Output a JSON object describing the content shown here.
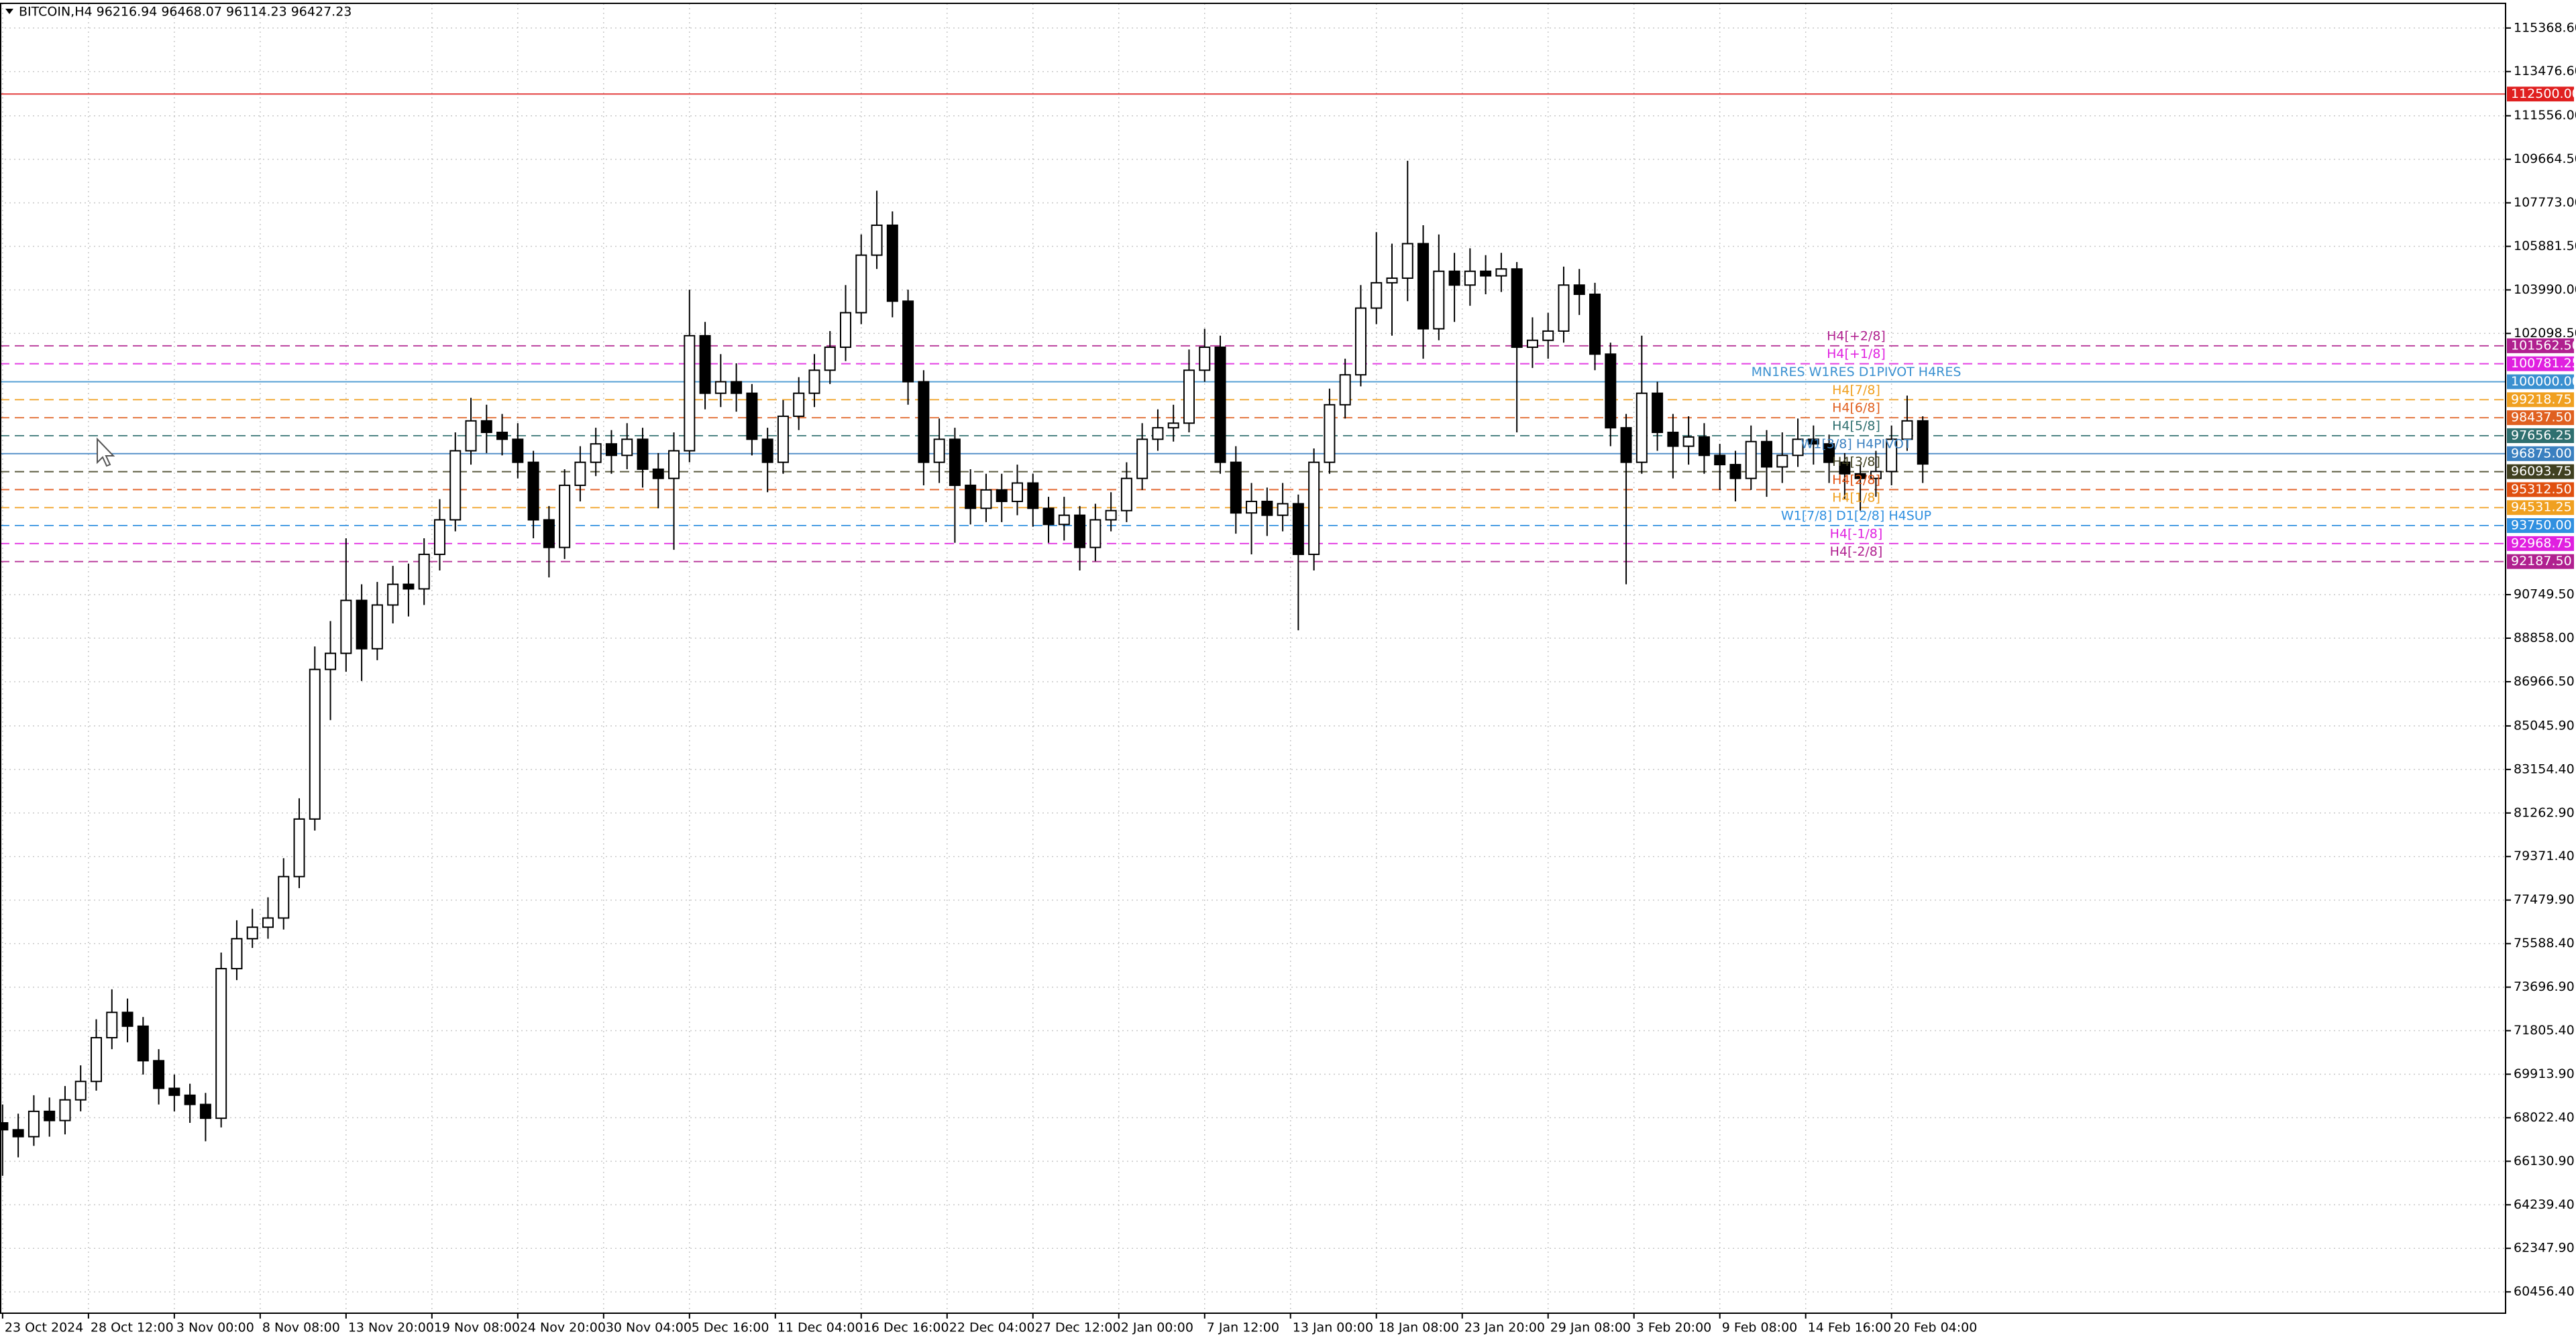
{
  "chart_data": {
    "type": "candlestick",
    "title": "BITCOIN,H4  96216.94 96468.07 96114.23 96427.23",
    "grid": true,
    "candle_colors": {
      "up": "#ffffff",
      "down": "#000000",
      "outline": "#000000"
    },
    "x": [
      0,
      6,
      12,
      18,
      24,
      30,
      36,
      42,
      48,
      54,
      60,
      66,
      72,
      78,
      84,
      90,
      96,
      102,
      108,
      114,
      120,
      126,
      132,
      138,
      144,
      150,
      156,
      162,
      168,
      174,
      180,
      186,
      192,
      198,
      204,
      210,
      216,
      222,
      228,
      234,
      240,
      246,
      252,
      258,
      264,
      270,
      276,
      282,
      288,
      294,
      300,
      306,
      312,
      318,
      324,
      330,
      336,
      342,
      348,
      354,
      360,
      366,
      372,
      378,
      384,
      390,
      396,
      402,
      408,
      414,
      420,
      426,
      432,
      438,
      444,
      450,
      456,
      462,
      468,
      474,
      480,
      486,
      492,
      498,
      504,
      510,
      516,
      522,
      528,
      534,
      540,
      546,
      552,
      558,
      564,
      570,
      576,
      582,
      588,
      594,
      600,
      606,
      612,
      618,
      624,
      630,
      636,
      642,
      648,
      654,
      660,
      666,
      672,
      678,
      684,
      690,
      696,
      702,
      708,
      714,
      720,
      726,
      732,
      738
    ],
    "open": [
      67800,
      67500,
      67200,
      68300,
      67900,
      68800,
      69600,
      71500,
      72600,
      72000,
      70500,
      69300,
      69000,
      68600,
      68000,
      74500,
      75800,
      76300,
      76700,
      78500,
      81000,
      87500,
      88200,
      90500,
      88400,
      90300,
      91200,
      91000,
      92500,
      94000,
      97000,
      98300,
      97800,
      97500,
      96500,
      94000,
      92800,
      95500,
      96500,
      97300,
      96800,
      97500,
      96200,
      95800,
      97000,
      102000,
      99500,
      100000,
      99500,
      97500,
      96500,
      98500,
      99500,
      100500,
      101500,
      103000,
      105500,
      106800,
      103500,
      100000,
      96500,
      97500,
      95500,
      94500,
      95300,
      94800,
      95600,
      94500,
      93800,
      94200,
      92800,
      94000,
      94400,
      95800,
      97500,
      98000,
      98200,
      100500,
      101500,
      96500,
      94300,
      94800,
      94200,
      94700,
      92500,
      96500,
      99000,
      100300,
      103200,
      104300,
      104500,
      106000,
      102300,
      104800,
      104200,
      104800,
      104600,
      104900,
      101500,
      101800,
      102200,
      104200,
      103800,
      101200,
      98000,
      96500,
      99500,
      97800,
      97200,
      97600,
      96800,
      96400,
      95800,
      97400,
      96300,
      96800,
      97500,
      97300,
      96500,
      96000,
      95800,
      96100,
      97500,
      98300
    ],
    "high": [
      68600,
      68200,
      69000,
      68900,
      69400,
      70300,
      72300,
      73600,
      73200,
      72400,
      71000,
      69900,
      69500,
      69100,
      75200,
      76600,
      77100,
      77600,
      79300,
      81900,
      88500,
      89600,
      93200,
      91200,
      91300,
      92000,
      92100,
      93200,
      94900,
      97800,
      99300,
      99000,
      98600,
      98200,
      97000,
      94600,
      96200,
      97200,
      98000,
      97900,
      98200,
      98000,
      96900,
      97800,
      104000,
      102600,
      101200,
      100800,
      99900,
      98000,
      99200,
      100200,
      101200,
      102200,
      104200,
      106400,
      108300,
      107400,
      104000,
      100500,
      98400,
      98000,
      96200,
      96000,
      96000,
      96400,
      96000,
      95000,
      95000,
      94600,
      94700,
      95200,
      96500,
      98200,
      98800,
      99000,
      101400,
      102300,
      102000,
      97200,
      95600,
      95400,
      95600,
      95100,
      97100,
      99700,
      101000,
      104200,
      106500,
      106000,
      109600,
      106800,
      106400,
      105600,
      105800,
      105500,
      105600,
      105200,
      102800,
      103000,
      105000,
      104900,
      104300,
      101700,
      98600,
      102000,
      100000,
      98600,
      98500,
      98200,
      97300,
      97000,
      98100,
      97900,
      97800,
      98400,
      98100,
      97700,
      96900,
      96400,
      97000,
      98100,
      99400,
      98500
    ],
    "low": [
      65500,
      66300,
      66800,
      67200,
      67300,
      68300,
      69200,
      71000,
      71300,
      69900,
      68600,
      68300,
      67800,
      67000,
      67600,
      74000,
      75400,
      75800,
      76200,
      78000,
      80500,
      85300,
      87400,
      87000,
      87900,
      89500,
      89800,
      90300,
      91800,
      93500,
      96400,
      96900,
      96800,
      95800,
      93200,
      91500,
      92300,
      94800,
      95900,
      96000,
      96200,
      95400,
      94500,
      92700,
      96500,
      98800,
      98900,
      98700,
      96800,
      95200,
      96000,
      97900,
      98900,
      99900,
      100900,
      102500,
      104900,
      102800,
      99000,
      95500,
      95600,
      93000,
      93800,
      93900,
      93900,
      94200,
      93700,
      93000,
      93100,
      91800,
      92200,
      93500,
      93900,
      95300,
      97000,
      97400,
      97800,
      100000,
      96000,
      93400,
      92500,
      93300,
      93500,
      89200,
      91800,
      96000,
      98400,
      99800,
      102500,
      102000,
      103500,
      101000,
      101800,
      102600,
      103300,
      103800,
      103900,
      97800,
      100600,
      101000,
      101700,
      102900,
      100500,
      97200,
      91200,
      96000,
      97000,
      95800,
      96400,
      96000,
      95300,
      94800,
      95300,
      95000,
      95600,
      96300,
      96400,
      95600,
      94900,
      94400,
      95000,
      95500,
      97000,
      95600
    ],
    "close": [
      67500,
      67200,
      68300,
      67900,
      68800,
      69600,
      71500,
      72600,
      72000,
      70500,
      69300,
      69000,
      68600,
      68000,
      74500,
      75800,
      76300,
      76700,
      78500,
      81000,
      87500,
      88200,
      90500,
      88400,
      90300,
      91200,
      91000,
      92500,
      94000,
      97000,
      98300,
      97800,
      97500,
      96500,
      94000,
      92800,
      95500,
      96500,
      97300,
      96800,
      97500,
      96200,
      95800,
      97000,
      102000,
      99500,
      100000,
      99500,
      97500,
      96500,
      98500,
      99500,
      100500,
      101500,
      103000,
      105500,
      106800,
      103500,
      100000,
      96500,
      97500,
      95500,
      94500,
      95300,
      94800,
      95600,
      94500,
      93800,
      94200,
      92800,
      94000,
      94400,
      95800,
      97500,
      98000,
      98200,
      100500,
      101500,
      96500,
      94300,
      94800,
      94200,
      94700,
      92500,
      96500,
      99000,
      100300,
      103200,
      104300,
      104500,
      106000,
      102300,
      104800,
      104200,
      104800,
      104600,
      104900,
      101500,
      101800,
      102200,
      104200,
      103800,
      101200,
      98000,
      96500,
      99500,
      97800,
      97200,
      97600,
      96800,
      96400,
      95800,
      97400,
      96300,
      96800,
      97500,
      97300,
      96500,
      96000,
      95800,
      96100,
      97500,
      98300,
      96427.23
    ],
    "xlim": [
      -1,
      962
    ],
    "xticks": [
      {
        "value": 0,
        "label": "23 Oct 2024"
      },
      {
        "value": 33,
        "label": "28 Oct 12:00"
      },
      {
        "value": 66,
        "label": "3 Nov 00:00"
      },
      {
        "value": 99,
        "label": "8 Nov 08:00"
      },
      {
        "value": 132,
        "label": "13 Nov 20:00"
      },
      {
        "value": 165,
        "label": "19 Nov 08:00"
      },
      {
        "value": 198,
        "label": "24 Nov 20:00"
      },
      {
        "value": 231,
        "label": "30 Nov 04:00"
      },
      {
        "value": 264,
        "label": "5 Dec 16:00"
      },
      {
        "value": 297,
        "label": "11 Dec 04:00"
      },
      {
        "value": 330,
        "label": "16 Dec 16:00"
      },
      {
        "value": 363,
        "label": "22 Dec 04:00"
      },
      {
        "value": 396,
        "label": "27 Dec 12:00"
      },
      {
        "value": 429,
        "label": "2 Jan 00:00"
      },
      {
        "value": 462,
        "label": "7 Jan 12:00"
      },
      {
        "value": 495,
        "label": "13 Jan 00:00"
      },
      {
        "value": 528,
        "label": "18 Jan 08:00"
      },
      {
        "value": 561,
        "label": "23 Jan 20:00"
      },
      {
        "value": 594,
        "label": "29 Jan 08:00"
      },
      {
        "value": 627,
        "label": "3 Feb 20:00"
      },
      {
        "value": 660,
        "label": "9 Feb 08:00"
      },
      {
        "value": 693,
        "label": "14 Feb 16:00"
      },
      {
        "value": 726,
        "label": "20 Feb 04:00"
      }
    ],
    "ylim": [
      59530,
      116440
    ],
    "yticks": [
      {
        "value": 115368.6,
        "label": "115368.60"
      },
      {
        "value": 113476.6,
        "label": "113476.60"
      },
      {
        "value": 111556,
        "label": "111556.00"
      },
      {
        "value": 109664.5,
        "label": "109664.50"
      },
      {
        "value": 107773,
        "label": "107773.00"
      },
      {
        "value": 105881.5,
        "label": "105881.50"
      },
      {
        "value": 103990,
        "label": "103990.00"
      },
      {
        "value": 102098.5,
        "label": "102098.50"
      },
      {
        "value": 90749.5,
        "label": "90749.50"
      },
      {
        "value": 88858,
        "label": "88858.00"
      },
      {
        "value": 86966.5,
        "label": "86966.50"
      },
      {
        "value": 85045.9,
        "label": "85045.90"
      },
      {
        "value": 83154.4,
        "label": "83154.40"
      },
      {
        "value": 81262.9,
        "label": "81262.90"
      },
      {
        "value": 79371.4,
        "label": "79371.40"
      },
      {
        "value": 77479.9,
        "label": "77479.90"
      },
      {
        "value": 75588.4,
        "label": "75588.40"
      },
      {
        "value": 73696.9,
        "label": "73696.90"
      },
      {
        "value": 71805.4,
        "label": "71805.40"
      },
      {
        "value": 69913.9,
        "label": "69913.90"
      },
      {
        "value": 68022.4,
        "label": "68022.40"
      },
      {
        "value": 66130.9,
        "label": "66130.90"
      },
      {
        "value": 64239.4,
        "label": "64239.40"
      },
      {
        "value": 62347.9,
        "label": "62347.90"
      },
      {
        "value": 60456.4,
        "label": "60456.40"
      }
    ],
    "levels": [
      {
        "value": 112500,
        "label": "112500.00",
        "color": "#e02020",
        "style": "solid"
      },
      {
        "value": 101562.5,
        "label": "101562.50",
        "name": "H4[+2/8]",
        "color": "#b0208f",
        "style": "dashed"
      },
      {
        "value": 100781.25,
        "label": "100781.25",
        "name": "H4[+1/8]",
        "color": "#e020e0",
        "style": "dashed"
      },
      {
        "value": 100000,
        "label": "100000.00",
        "name": "MN1RES W1RES D1PIVOT H4RES",
        "color": "#3a90d0",
        "style": "solid"
      },
      {
        "value": 99218.75,
        "label": "99218.75",
        "name": "H4[7/8]",
        "color": "#f0a020",
        "style": "dashed"
      },
      {
        "value": 98437.5,
        "label": "98437.50",
        "name": "H4[6/8]",
        "color": "#e06020",
        "style": "dashed"
      },
      {
        "value": 97656.25,
        "label": "97656.25",
        "name": "H4[5/8]",
        "color": "#2f6f6f",
        "style": "dashed"
      },
      {
        "value": 96875,
        "label": "96875.00",
        "name": "W1[3/8] H4PIVOT",
        "color": "#3a80c0",
        "style": "solid"
      },
      {
        "value": 96093.75,
        "label": "96093.75",
        "name": "H4[3/8]",
        "color": "#404020",
        "style": "dashed"
      },
      {
        "value": 95312.5,
        "label": "95312.50",
        "name": "H4[2/8]",
        "color": "#e05010",
        "style": "dashed"
      },
      {
        "value": 94531.25,
        "label": "94531.25",
        "name": "H4[1/8]",
        "color": "#f0a020",
        "style": "dashed"
      },
      {
        "value": 93750,
        "label": "93750.00",
        "name": "W1[7/8] D1[2/8] H4SUP",
        "color": "#3090e0",
        "style": "dashed"
      },
      {
        "value": 92968.75,
        "label": "92968.75",
        "name": "H4[-1/8]",
        "color": "#e020e0",
        "style": "dashed"
      },
      {
        "value": 92187.5,
        "label": "92187.50",
        "name": "H4[-2/8]",
        "color": "#b0208f",
        "style": "dashed"
      }
    ]
  }
}
